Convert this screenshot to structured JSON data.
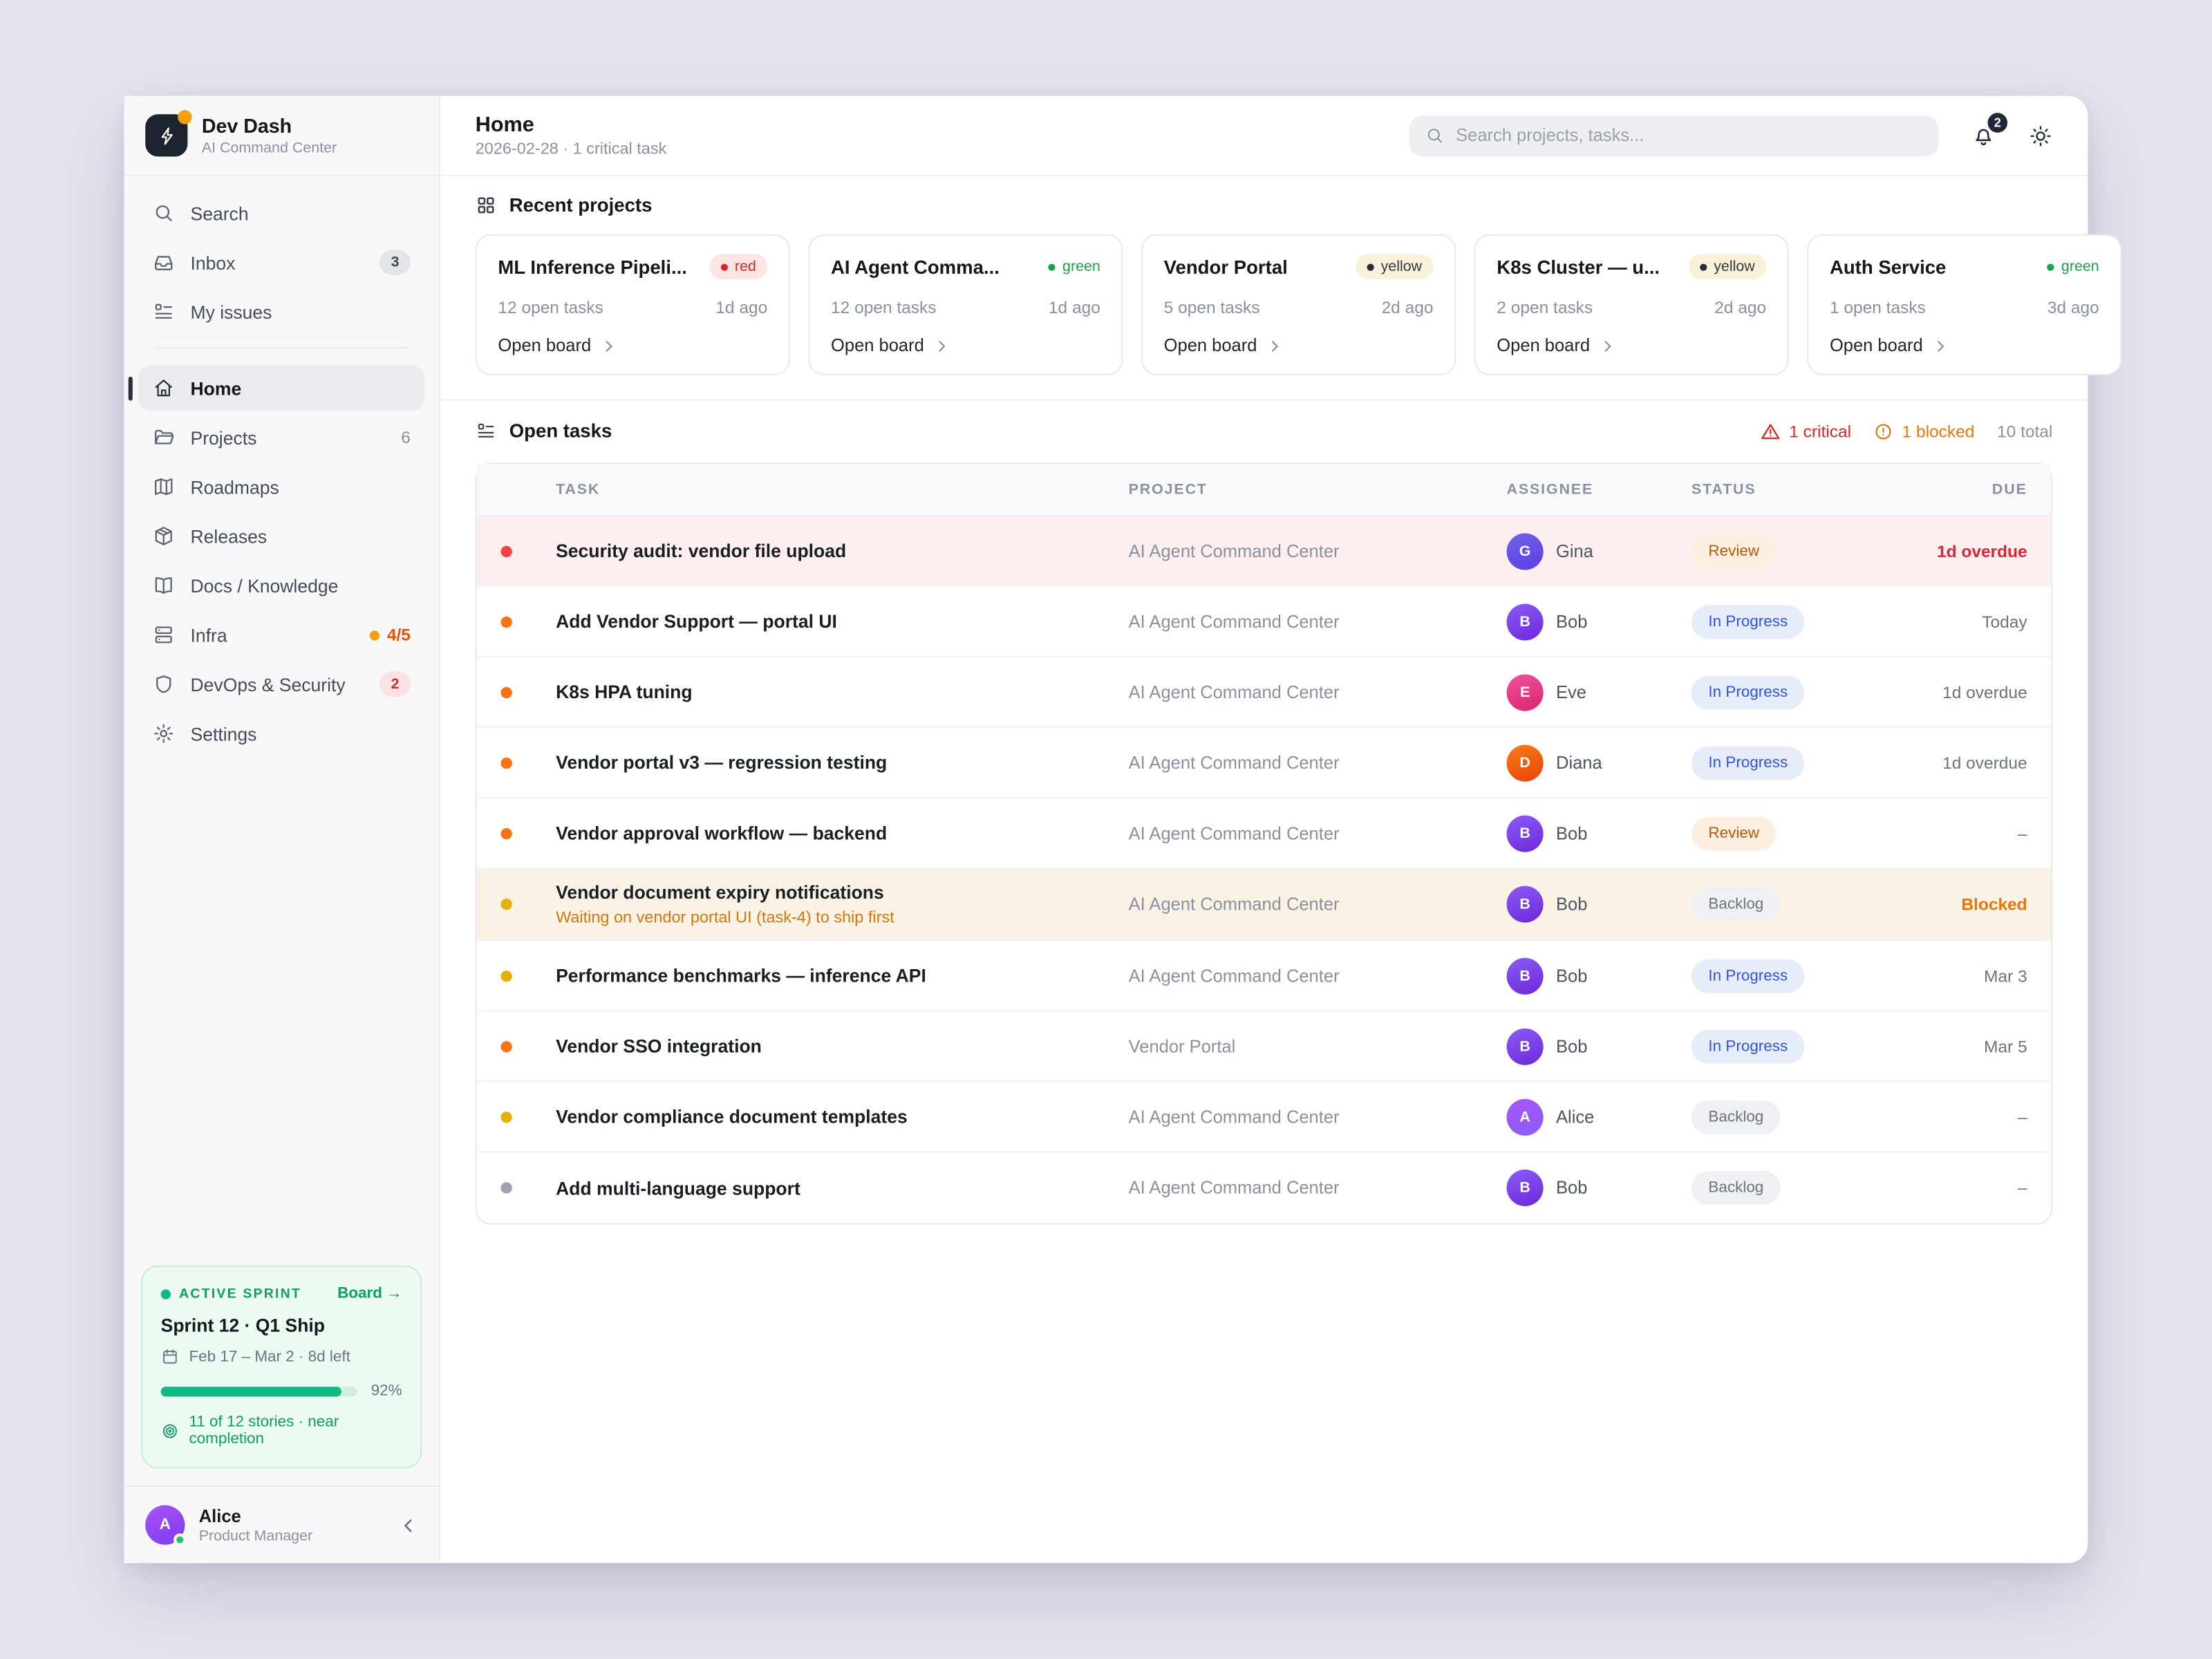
{
  "brand": {
    "name": "Dev Dash",
    "subtitle": "AI Command Center"
  },
  "sidebar": {
    "top_items": [
      {
        "icon": "search",
        "label": "Search"
      },
      {
        "icon": "inbox",
        "label": "Inbox",
        "badge": {
          "label": "3",
          "tone": "gray"
        }
      },
      {
        "icon": "checklist",
        "label": "My issues"
      }
    ],
    "main_items": [
      {
        "icon": "home",
        "label": "Home",
        "active": true
      },
      {
        "icon": "folder",
        "label": "Projects",
        "badge": {
          "label": "6",
          "tone": "plain"
        }
      },
      {
        "icon": "map",
        "label": "Roadmaps"
      },
      {
        "icon": "package",
        "label": "Releases"
      },
      {
        "icon": "book",
        "label": "Docs / Knowledge"
      },
      {
        "icon": "server",
        "label": "Infra",
        "badge": {
          "label": "4/5",
          "tone": "orange-dot"
        }
      },
      {
        "icon": "shield",
        "label": "DevOps & Security",
        "badge": {
          "label": "2",
          "tone": "red"
        }
      },
      {
        "icon": "gear",
        "label": "Settings"
      }
    ],
    "sprint": {
      "eyebrow": "ACTIVE SPRINT",
      "link": "Board →",
      "title": "Sprint 12 · Q1 Ship",
      "dates": "Feb 17 – Mar 2 · 8d left",
      "progress_pct": 92,
      "progress_label": "92%",
      "stories": "11 of 12 stories · near completion"
    },
    "user": {
      "initial": "A",
      "name": "Alice",
      "role": "Product Manager"
    }
  },
  "header": {
    "title": "Home",
    "subtitle": "2026-02-28 · 1 critical task",
    "search_placeholder": "Search projects, tasks...",
    "notifications": "2"
  },
  "recent": {
    "title": "Recent projects",
    "cards": [
      {
        "title": "ML Inference Pipeli...",
        "chip": {
          "label": "red",
          "tone": "red"
        },
        "tasks": "12 open tasks",
        "updated": "1d ago",
        "link": "Open board"
      },
      {
        "title": "AI Agent Comma...",
        "chip": {
          "label": "green",
          "tone": "green"
        },
        "tasks": "12 open tasks",
        "updated": "1d ago",
        "link": "Open board"
      },
      {
        "title": "Vendor Portal",
        "chip": {
          "label": "yellow",
          "tone": "yellow"
        },
        "tasks": "5 open tasks",
        "updated": "2d ago",
        "link": "Open board"
      },
      {
        "title": "K8s Cluster — u...",
        "chip": {
          "label": "yellow",
          "tone": "yellow"
        },
        "tasks": "2 open tasks",
        "updated": "2d ago",
        "link": "Open board"
      },
      {
        "title": "Auth Service",
        "chip": {
          "label": "green",
          "tone": "green"
        },
        "tasks": "1 open tasks",
        "updated": "3d ago",
        "link": "Open board"
      }
    ]
  },
  "tasks": {
    "title": "Open tasks",
    "summary": {
      "critical": "1 critical",
      "blocked": "1 blocked",
      "total": "10 total"
    },
    "columns": [
      "TASK",
      "PROJECT",
      "ASSIGNEE",
      "STATUS",
      "DUE"
    ],
    "rows": [
      {
        "dot": "red",
        "title": "Security audit: vendor file upload",
        "project": "AI Agent Command Center",
        "avatar": {
          "initial": "G",
          "color": "indigo"
        },
        "name": "Gina",
        "status": {
          "label": "Review",
          "tone": "amber"
        },
        "due": {
          "label": "1d overdue",
          "tone": "red"
        },
        "tone": "critical"
      },
      {
        "dot": "orange",
        "title": "Add Vendor Support — portal UI",
        "project": "AI Agent Command Center",
        "avatar": {
          "initial": "B",
          "color": "violet"
        },
        "name": "Bob",
        "status": {
          "label": "In Progress",
          "tone": "blue"
        },
        "due": {
          "label": "Today"
        }
      },
      {
        "dot": "orange",
        "title": "K8s HPA tuning",
        "project": "AI Agent Command Center",
        "avatar": {
          "initial": "E",
          "color": "pink"
        },
        "name": "Eve",
        "status": {
          "label": "In Progress",
          "tone": "blue"
        },
        "due": {
          "label": "1d overdue"
        }
      },
      {
        "dot": "orange",
        "title": "Vendor portal v3 — regression testing",
        "project": "AI Agent Command Center",
        "avatar": {
          "initial": "D",
          "color": "orangered"
        },
        "name": "Diana",
        "status": {
          "label": "In Progress",
          "tone": "blue"
        },
        "due": {
          "label": "1d overdue"
        }
      },
      {
        "dot": "orange",
        "title": "Vendor approval workflow — backend",
        "project": "AI Agent Command Center",
        "avatar": {
          "initial": "B",
          "color": "violet"
        },
        "name": "Bob",
        "status": {
          "label": "Review",
          "tone": "amber"
        },
        "due": {
          "label": "–"
        }
      },
      {
        "dot": "yellow",
        "title": "Vendor document expiry notifications",
        "note": "Waiting on vendor portal UI (task-4) to ship first",
        "project": "AI Agent Command Center",
        "avatar": {
          "initial": "B",
          "color": "violet"
        },
        "name": "Bob",
        "status": {
          "label": "Backlog",
          "tone": "gray"
        },
        "due": {
          "label": "Blocked",
          "tone": "orange"
        },
        "tone": "blocked"
      },
      {
        "dot": "yellow",
        "title": "Performance benchmarks — inference API",
        "project": "AI Agent Command Center",
        "avatar": {
          "initial": "B",
          "color": "violet"
        },
        "name": "Bob",
        "status": {
          "label": "In Progress",
          "tone": "blue"
        },
        "due": {
          "label": "Mar 3"
        }
      },
      {
        "dot": "orange",
        "title": "Vendor SSO integration",
        "project": "Vendor Portal",
        "avatar": {
          "initial": "B",
          "color": "violet"
        },
        "name": "Bob",
        "status": {
          "label": "In Progress",
          "tone": "blue"
        },
        "due": {
          "label": "Mar 5"
        }
      },
      {
        "dot": "yellow",
        "title": "Vendor compliance document templates",
        "project": "AI Agent Command Center",
        "avatar": {
          "initial": "A",
          "color": "purple"
        },
        "name": "Alice",
        "status": {
          "label": "Backlog",
          "tone": "gray"
        },
        "due": {
          "label": "–"
        }
      },
      {
        "dot": "gray",
        "title": "Add multi-language support",
        "project": "AI Agent Command Center",
        "avatar": {
          "initial": "B",
          "color": "violet"
        },
        "name": "Bob",
        "status": {
          "label": "Backlog",
          "tone": "gray"
        },
        "due": {
          "label": "–"
        }
      }
    ]
  }
}
